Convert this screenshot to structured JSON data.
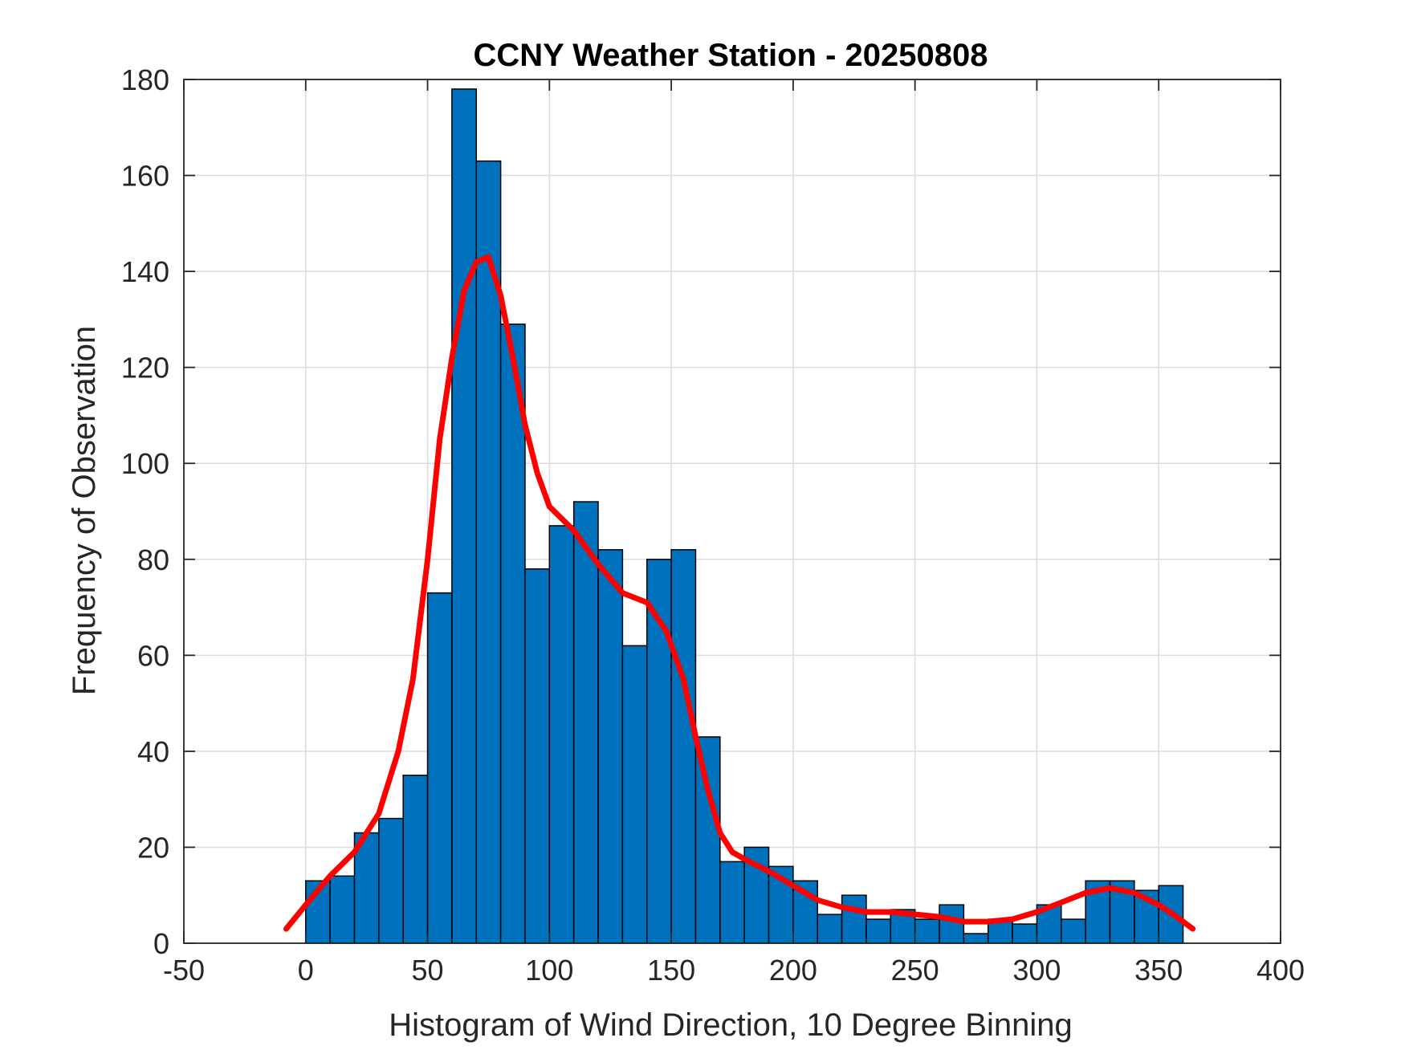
{
  "chart_data": {
    "type": "bar",
    "title": "CCNY Weather Station - 20250808",
    "xlabel": "Histogram of Wind Direction, 10 Degree Binning",
    "ylabel": "Frequency of Observation",
    "xlim": [
      -50,
      400
    ],
    "ylim": [
      0,
      180
    ],
    "xticks": [
      "-50",
      "0",
      "50",
      "100",
      "150",
      "200",
      "250",
      "300",
      "350",
      "400"
    ],
    "yticks": [
      "0",
      "20",
      "40",
      "60",
      "80",
      "100",
      "120",
      "140",
      "160",
      "180"
    ],
    "grid": true,
    "bin_width": 10,
    "bin_edges_start": [
      0,
      10,
      20,
      30,
      40,
      50,
      60,
      70,
      80,
      90,
      100,
      110,
      120,
      130,
      140,
      150,
      160,
      170,
      180,
      190,
      200,
      210,
      220,
      230,
      240,
      250,
      260,
      270,
      280,
      290,
      300,
      310,
      320,
      330,
      340,
      350
    ],
    "values": [
      13,
      14,
      23,
      26,
      35,
      73,
      178,
      163,
      129,
      78,
      87,
      92,
      82,
      62,
      80,
      82,
      43,
      17,
      20,
      16,
      13,
      6,
      10,
      5,
      7,
      5,
      8,
      2,
      5,
      4,
      8,
      5,
      13,
      13,
      11,
      12
    ],
    "bar_color": "#0072BD",
    "fit_color": "#FF0000",
    "fit_curve": [
      [
        -8,
        3
      ],
      [
        0,
        8
      ],
      [
        10,
        14
      ],
      [
        20,
        19
      ],
      [
        30,
        27
      ],
      [
        38,
        40
      ],
      [
        44,
        55
      ],
      [
        50,
        80
      ],
      [
        55,
        105
      ],
      [
        60,
        122
      ],
      [
        65,
        136
      ],
      [
        70,
        142
      ],
      [
        75,
        143
      ],
      [
        80,
        135
      ],
      [
        85,
        122
      ],
      [
        90,
        108
      ],
      [
        95,
        98
      ],
      [
        100,
        91
      ],
      [
        110,
        86
      ],
      [
        120,
        79
      ],
      [
        130,
        73
      ],
      [
        140,
        71
      ],
      [
        148,
        65
      ],
      [
        155,
        55
      ],
      [
        160,
        43
      ],
      [
        165,
        32
      ],
      [
        170,
        23
      ],
      [
        175,
        19
      ],
      [
        182,
        17
      ],
      [
        190,
        15
      ],
      [
        200,
        12
      ],
      [
        210,
        9
      ],
      [
        220,
        7.5
      ],
      [
        230,
        6.5
      ],
      [
        240,
        6.5
      ],
      [
        250,
        6
      ],
      [
        260,
        5.5
      ],
      [
        270,
        4.5
      ],
      [
        280,
        4.5
      ],
      [
        290,
        5
      ],
      [
        300,
        6.5
      ],
      [
        310,
        8.5
      ],
      [
        320,
        10.5
      ],
      [
        330,
        11.5
      ],
      [
        340,
        10.5
      ],
      [
        350,
        8
      ],
      [
        356,
        6
      ],
      [
        364,
        3
      ]
    ]
  }
}
